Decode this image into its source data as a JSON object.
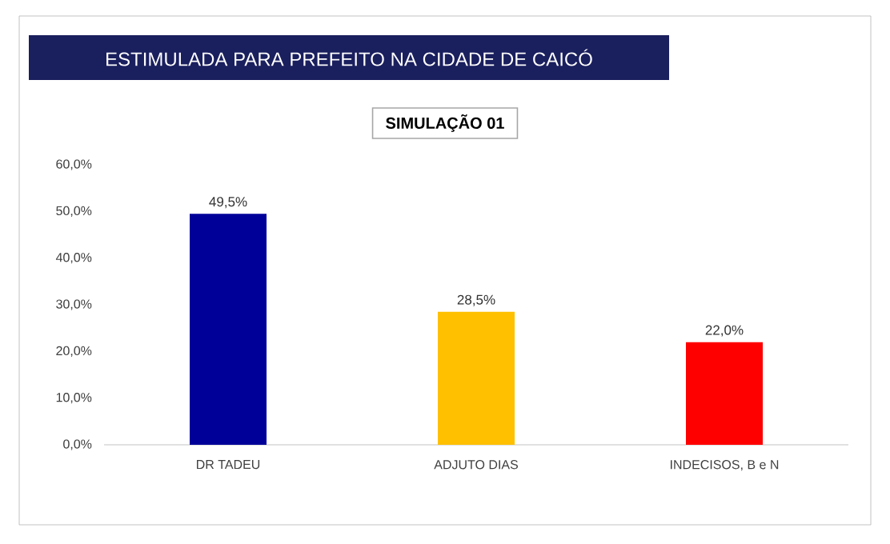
{
  "chart_data": {
    "type": "bar",
    "title": "ESTIMULADA PARA PREFEITO NA CIDADE DE CAICÓ",
    "subtitle": "SIMULAÇÃO 01",
    "categories": [
      "DR TADEU",
      "ADJUTO DIAS",
      "INDECISOS, B e N"
    ],
    "values": [
      49.5,
      28.5,
      22.0
    ],
    "colors": [
      "#000099",
      "#ffc000",
      "#ff0000"
    ],
    "value_labels": [
      "49,5%",
      "28,5%",
      "22,0%"
    ],
    "ylim": [
      0,
      60
    ],
    "yticks": [
      {
        "value": 0,
        "label": "0,0%"
      },
      {
        "value": 10,
        "label": "10,0%"
      },
      {
        "value": 20,
        "label": "20,0%"
      },
      {
        "value": 30,
        "label": "30,0%"
      },
      {
        "value": 40,
        "label": "40,0%"
      },
      {
        "value": 50,
        "label": "50,0%"
      },
      {
        "value": 60,
        "label": "60,0%"
      }
    ],
    "grid": false
  }
}
